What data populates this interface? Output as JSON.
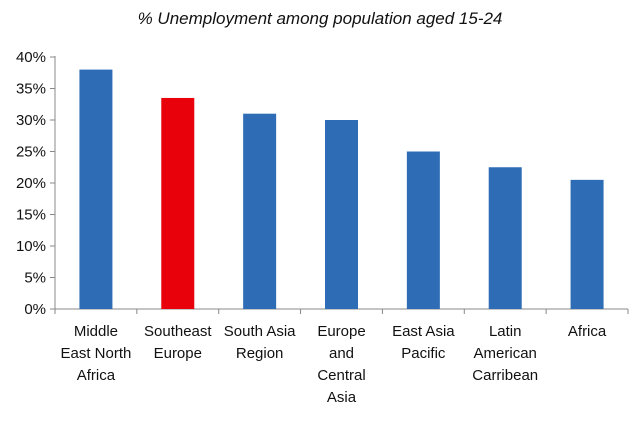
{
  "chart_data": {
    "type": "bar",
    "title": "% Unemployment among population aged  15-24",
    "xlabel": "",
    "ylabel": "",
    "categories": [
      [
        "Middle",
        "East North",
        "Africa"
      ],
      [
        "Southeast",
        "Europe"
      ],
      [
        "South Asia",
        "Region"
      ],
      [
        "Europe",
        "and",
        "Central",
        "Asia"
      ],
      [
        "East Asia",
        "Pacific"
      ],
      [
        "Latin",
        "American",
        "Carribean"
      ],
      [
        "Africa"
      ]
    ],
    "values": [
      38,
      33.5,
      31,
      30,
      25,
      22.5,
      20.5
    ],
    "colors": [
      "#2e6db5",
      "#e8000b",
      "#2e6db5",
      "#2e6db5",
      "#2e6db5",
      "#2e6db5",
      "#2e6db5"
    ],
    "ylim": [
      0,
      40
    ],
    "yticks": [
      "0%",
      "5%",
      "10%",
      "15%",
      "20%",
      "25%",
      "30%",
      "35%",
      "40%"
    ],
    "grid": false,
    "legend": "none"
  }
}
